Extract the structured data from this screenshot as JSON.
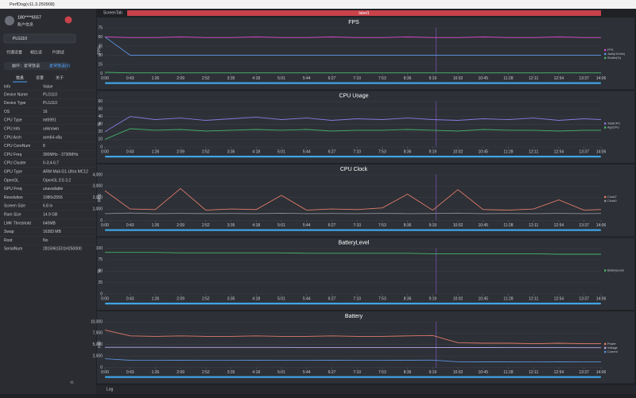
{
  "window_title": "PerfDog(v11.3.250908)",
  "user": {
    "name": "180****6557",
    "status": "账户信息"
  },
  "device": "PLG110",
  "tool_tabs": [
    "代理设置",
    "帧比设",
    "PI测试"
  ],
  "app": {
    "name": "崩坏：星穹铁道",
    "package": "星穹铁道(0)"
  },
  "info_tabs": [
    "信息",
    "设置",
    "关于"
  ],
  "table": {
    "header": [
      "Info",
      "Value"
    ],
    "rows": [
      [
        "Device Name",
        "PLG110"
      ],
      [
        "Device Type",
        "PLG110"
      ],
      [
        "OS",
        "16"
      ],
      [
        "CPU Type",
        "mt6991"
      ],
      [
        "CPU Info",
        "unknown"
      ],
      [
        "CPU Arch",
        "arm64-v8a"
      ],
      [
        "CPU CoreNum",
        "8"
      ],
      [
        "CPU Freq",
        "300MHz - 3730MHz"
      ],
      [
        "CPU Cluster",
        "0-3;4-6;7"
      ],
      [
        "GPU Type",
        "ARM Mali-G1-Ultra MC12"
      ],
      [
        "OpenGL",
        "OpenGL ES 3.2"
      ],
      [
        "GPU Freq",
        "unavailable"
      ],
      [
        "Resolution",
        "1080x2556"
      ],
      [
        "Screen Size",
        "6.8 in"
      ],
      [
        "Ram Size",
        "14.9 GB"
      ],
      [
        "LMK Threshold",
        "640MB"
      ],
      [
        "Swap",
        "16383 MB"
      ],
      [
        "Root",
        "No"
      ],
      [
        "SerialNum",
        "2815961E01H250000"
      ]
    ]
  },
  "screen_tab": "ScreenTab",
  "label": "label1",
  "log": "Log",
  "chart_data": [
    {
      "type": "line",
      "title": "FPS",
      "ylabel": "FPS",
      "ylim": [
        0,
        75
      ],
      "yticks": [
        0,
        15,
        30,
        45,
        60,
        75
      ],
      "xlim": [
        0,
        846
      ],
      "x": [
        0,
        43,
        86,
        129,
        172,
        215,
        258,
        301,
        344,
        387,
        430,
        473,
        516,
        559,
        602,
        645,
        688,
        731,
        774,
        817,
        846
      ],
      "xticks": [
        {
          "value": 0,
          "label": "0:00"
        },
        {
          "value": 43,
          "label": "0:43"
        },
        {
          "value": 86,
          "label": "1:26"
        },
        {
          "value": 129,
          "label": "2:09"
        },
        {
          "value": 172,
          "label": "2:52"
        },
        {
          "value": 215,
          "label": "3:35"
        },
        {
          "value": 258,
          "label": "4:18"
        },
        {
          "value": 301,
          "label": "5:01"
        },
        {
          "value": 344,
          "label": "5:44"
        },
        {
          "value": 387,
          "label": "6:27"
        },
        {
          "value": 430,
          "label": "7:10"
        },
        {
          "value": 473,
          "label": "7:53"
        },
        {
          "value": 516,
          "label": "8:36"
        },
        {
          "value": 559,
          "label": "9:19"
        },
        {
          "value": 602,
          "label": "10:02"
        },
        {
          "value": 645,
          "label": "10:45"
        },
        {
          "value": 688,
          "label": "11:28"
        },
        {
          "value": 731,
          "label": "12:11"
        },
        {
          "value": 774,
          "label": "12:54"
        },
        {
          "value": 817,
          "label": "13:37"
        },
        {
          "value": 846,
          "label": "14:06"
        }
      ],
      "series": [
        {
          "name": "FPS",
          "color": "#d548c8",
          "values": [
            60,
            59,
            59,
            60,
            59,
            59,
            60,
            59,
            59,
            60,
            59,
            59,
            60,
            59,
            59,
            60,
            59,
            59,
            60,
            59,
            59
          ]
        },
        {
          "name": "Jank(/10min)",
          "color": "#5a8fd8",
          "values": [
            60,
            30,
            30,
            30,
            30,
            30,
            30,
            30,
            30,
            30,
            30,
            30,
            30,
            30,
            30,
            30,
            30,
            30,
            30,
            30,
            30
          ]
        },
        {
          "name": "Stutter(%)",
          "color": "#46b36a",
          "values": [
            2,
            1,
            1,
            1,
            1,
            1,
            1,
            1,
            1,
            1,
            1,
            1,
            1,
            1,
            1,
            1,
            1,
            1,
            1,
            1,
            1
          ]
        }
      ]
    },
    {
      "type": "line",
      "title": "CPU Usage",
      "ylabel": "%",
      "ylim": [
        0,
        60
      ],
      "yticks": [
        0,
        10,
        20,
        30,
        40,
        50,
        60
      ],
      "xlim": [
        0,
        846
      ],
      "x": [
        0,
        43,
        86,
        129,
        172,
        215,
        258,
        301,
        344,
        387,
        430,
        473,
        516,
        559,
        602,
        645,
        688,
        731,
        774,
        817,
        846
      ],
      "xticks": [
        {
          "value": 0,
          "label": "0:00"
        },
        {
          "value": 43,
          "label": "0:43"
        },
        {
          "value": 86,
          "label": "1:26"
        },
        {
          "value": 129,
          "label": "2:09"
        },
        {
          "value": 172,
          "label": "2:52"
        },
        {
          "value": 215,
          "label": "3:35"
        },
        {
          "value": 258,
          "label": "4:18"
        },
        {
          "value": 301,
          "label": "5:01"
        },
        {
          "value": 344,
          "label": "5:44"
        },
        {
          "value": 387,
          "label": "6:27"
        },
        {
          "value": 430,
          "label": "7:10"
        },
        {
          "value": 473,
          "label": "7:53"
        },
        {
          "value": 516,
          "label": "8:36"
        },
        {
          "value": 559,
          "label": "9:19"
        },
        {
          "value": 602,
          "label": "10:02"
        },
        {
          "value": 645,
          "label": "10:45"
        },
        {
          "value": 688,
          "label": "11:28"
        },
        {
          "value": 731,
          "label": "12:11"
        },
        {
          "value": 774,
          "label": "12:54"
        },
        {
          "value": 817,
          "label": "13:37"
        },
        {
          "value": 846,
          "label": "14:06"
        }
      ],
      "series": [
        {
          "name": "TotalCPU",
          "color": "#8a7ae0",
          "values": [
            20,
            40,
            36,
            38,
            35,
            37,
            39,
            36,
            38,
            35,
            37,
            36,
            38,
            36,
            35,
            37,
            36,
            38,
            35,
            37,
            36
          ]
        },
        {
          "name": "AppCPU",
          "color": "#46b36a",
          "values": [
            10,
            24,
            22,
            23,
            21,
            22,
            23,
            22,
            23,
            21,
            22,
            22,
            23,
            22,
            21,
            23,
            22,
            22,
            21,
            22,
            22
          ]
        }
      ]
    },
    {
      "type": "line",
      "title": "CPU Clock",
      "ylabel": "MHz",
      "ylim": [
        0,
        4000
      ],
      "yticks": [
        {
          "value": 0,
          "label": "0"
        },
        {
          "value": 1000,
          "label": "1,000"
        },
        {
          "value": 2000,
          "label": "2,000"
        },
        {
          "value": 3000,
          "label": "3,000"
        },
        {
          "value": 4000,
          "label": "4,000"
        }
      ],
      "xlim": [
        0,
        846
      ],
      "x": [
        0,
        43,
        86,
        129,
        172,
        215,
        258,
        301,
        344,
        387,
        430,
        473,
        516,
        559,
        602,
        645,
        688,
        731,
        774,
        817,
        846
      ],
      "xticks": [
        {
          "value": 0,
          "label": "0:00"
        },
        {
          "value": 43,
          "label": "0:43"
        },
        {
          "value": 86,
          "label": "1:26"
        },
        {
          "value": 129,
          "label": "2:09"
        },
        {
          "value": 172,
          "label": "2:52"
        },
        {
          "value": 215,
          "label": "3:35"
        },
        {
          "value": 258,
          "label": "4:18"
        },
        {
          "value": 301,
          "label": "5:01"
        },
        {
          "value": 344,
          "label": "5:44"
        },
        {
          "value": 387,
          "label": "6:27"
        },
        {
          "value": 430,
          "label": "7:10"
        },
        {
          "value": 473,
          "label": "7:53"
        },
        {
          "value": 516,
          "label": "8:36"
        },
        {
          "value": 559,
          "label": "9:19"
        },
        {
          "value": 602,
          "label": "10:02"
        },
        {
          "value": 645,
          "label": "10:45"
        },
        {
          "value": 688,
          "label": "11:28"
        },
        {
          "value": 731,
          "label": "12:11"
        },
        {
          "value": 774,
          "label": "12:54"
        },
        {
          "value": 817,
          "label": "13:37"
        },
        {
          "value": 846,
          "label": "14:06"
        }
      ],
      "series": [
        {
          "name": "Clock7",
          "color": "#e07a6a",
          "values": [
            2600,
            1000,
            950,
            2800,
            900,
            1000,
            950,
            2200,
            900,
            1000,
            950,
            1100,
            2300,
            900,
            2700,
            950,
            900,
            1000,
            1800,
            900,
            950
          ]
        },
        {
          "name": "Clock0",
          "color": "#8d8f96",
          "values": [
            600,
            650,
            600,
            620,
            600,
            610,
            600,
            630,
            600,
            610,
            600,
            620,
            600,
            610,
            640,
            600,
            610,
            600,
            620,
            600,
            610
          ]
        }
      ]
    },
    {
      "type": "line",
      "title": "BatteryLevel",
      "ylabel": "%",
      "ylim": [
        0,
        100
      ],
      "yticks": [
        0,
        25,
        50,
        75,
        100
      ],
      "xlim": [
        0,
        846
      ],
      "x": [
        0,
        43,
        86,
        129,
        172,
        215,
        258,
        301,
        344,
        387,
        430,
        473,
        516,
        559,
        602,
        645,
        688,
        731,
        774,
        817,
        846
      ],
      "xticks": [
        {
          "value": 0,
          "label": "0:00"
        },
        {
          "value": 43,
          "label": "0:43"
        },
        {
          "value": 86,
          "label": "1:26"
        },
        {
          "value": 129,
          "label": "2:09"
        },
        {
          "value": 172,
          "label": "2:52"
        },
        {
          "value": 215,
          "label": "3:35"
        },
        {
          "value": 258,
          "label": "4:18"
        },
        {
          "value": 301,
          "label": "5:01"
        },
        {
          "value": 344,
          "label": "5:44"
        },
        {
          "value": 387,
          "label": "6:27"
        },
        {
          "value": 430,
          "label": "7:10"
        },
        {
          "value": 473,
          "label": "7:53"
        },
        {
          "value": 516,
          "label": "8:36"
        },
        {
          "value": 559,
          "label": "9:19"
        },
        {
          "value": 602,
          "label": "10:02"
        },
        {
          "value": 645,
          "label": "10:45"
        },
        {
          "value": 688,
          "label": "11:28"
        },
        {
          "value": 731,
          "label": "12:11"
        },
        {
          "value": 774,
          "label": "12:54"
        },
        {
          "value": 817,
          "label": "13:37"
        },
        {
          "value": 846,
          "label": "14:06"
        }
      ],
      "series": [
        {
          "name": "BatteryLevel",
          "color": "#46b36a",
          "values": [
            91,
            91,
            91,
            90,
            90,
            90,
            90,
            90,
            89,
            89,
            89,
            89,
            89,
            88,
            88,
            88,
            88,
            88,
            87,
            87,
            87
          ]
        }
      ]
    },
    {
      "type": "line",
      "title": "Battery",
      "ylabel": "mW",
      "ylim": [
        0,
        10000
      ],
      "yticks": [
        {
          "value": 0,
          "label": "0"
        },
        {
          "value": 2500,
          "label": "2,500"
        },
        {
          "value": 5000,
          "label": "5,000"
        },
        {
          "value": 7500,
          "label": "7,500"
        },
        {
          "value": 10000,
          "label": "10,000"
        }
      ],
      "xlim": [
        0,
        846
      ],
      "x": [
        0,
        43,
        86,
        129,
        172,
        215,
        258,
        301,
        344,
        387,
        430,
        473,
        516,
        559,
        602,
        645,
        688,
        731,
        774,
        817,
        846
      ],
      "xticks": [
        {
          "value": 0,
          "label": "0:00"
        },
        {
          "value": 43,
          "label": "0:43"
        },
        {
          "value": 86,
          "label": "1:26"
        },
        {
          "value": 129,
          "label": "2:09"
        },
        {
          "value": 172,
          "label": "2:52"
        },
        {
          "value": 215,
          "label": "3:35"
        },
        {
          "value": 258,
          "label": "4:18"
        },
        {
          "value": 301,
          "label": "5:01"
        },
        {
          "value": 344,
          "label": "5:44"
        },
        {
          "value": 387,
          "label": "6:27"
        },
        {
          "value": 430,
          "label": "7:10"
        },
        {
          "value": 473,
          "label": "7:53"
        },
        {
          "value": 516,
          "label": "8:36"
        },
        {
          "value": 559,
          "label": "9:19"
        },
        {
          "value": 602,
          "label": "10:02"
        },
        {
          "value": 645,
          "label": "10:45"
        },
        {
          "value": 688,
          "label": "11:28"
        },
        {
          "value": 731,
          "label": "12:11"
        },
        {
          "value": 774,
          "label": "12:54"
        },
        {
          "value": 817,
          "label": "13:37"
        },
        {
          "value": 846,
          "label": "14:06"
        }
      ],
      "series": [
        {
          "name": "Power",
          "color": "#e07a6a",
          "values": [
            8200,
            6900,
            6800,
            6900,
            6800,
            6800,
            6900,
            6800,
            6800,
            6900,
            6800,
            6800,
            6900,
            7000,
            5400,
            5300,
            5300,
            5200,
            5300,
            5200,
            5200
          ]
        },
        {
          "name": "Voltage",
          "color": "#b9a8e8",
          "values": [
            4400,
            4400,
            4400,
            4390,
            4390,
            4380,
            4380,
            4380,
            4370,
            4370,
            4370,
            4360,
            4360,
            4360,
            4340,
            4340,
            4330,
            4330,
            4330,
            4320,
            4320
          ]
        },
        {
          "name": "Current",
          "color": "#5a8fd8",
          "values": [
            1900,
            1560,
            1550,
            1570,
            1550,
            1550,
            1560,
            1550,
            1550,
            1570,
            1550,
            1550,
            1560,
            1600,
            1240,
            1220,
            1220,
            1200,
            1220,
            1200,
            1200
          ]
        }
      ]
    }
  ]
}
